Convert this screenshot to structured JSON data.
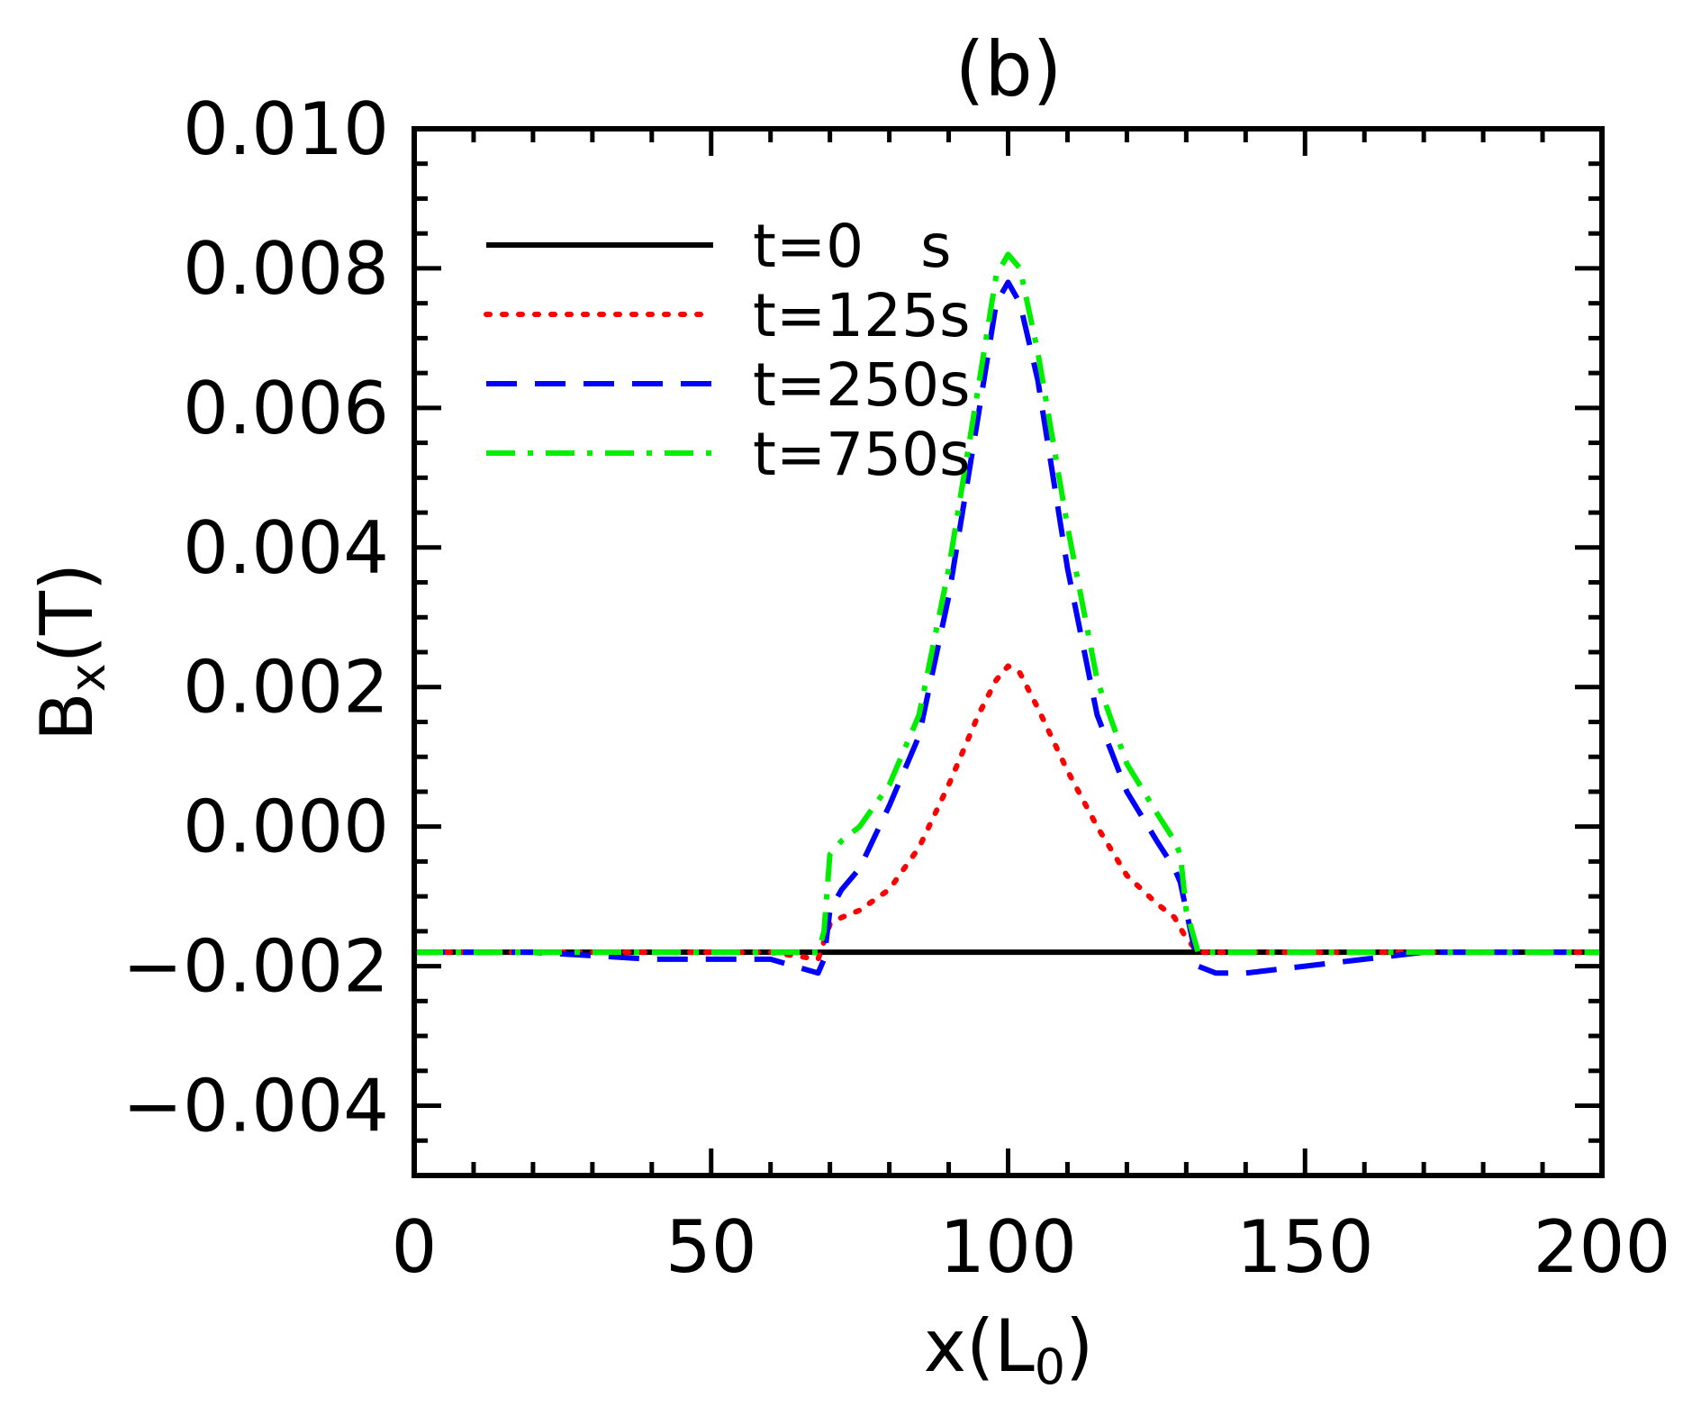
{
  "chart_data": {
    "type": "line",
    "title": "(b)",
    "xlabel": {
      "main": "x(L",
      "sub": "0",
      "end": ")"
    },
    "ylabel": {
      "main": "B",
      "sub": "x",
      "end": "(T)"
    },
    "xlim": [
      0,
      200
    ],
    "ylim": [
      -0.005,
      0.01
    ],
    "xticks": [
      0,
      50,
      100,
      150,
      200
    ],
    "xtick_labels": [
      "0",
      "50",
      "100",
      "150",
      "200"
    ],
    "yticks": [
      -0.004,
      -0.002,
      0.0,
      0.002,
      0.004,
      0.006,
      0.008,
      0.01
    ],
    "ytick_labels": [
      "−0.004",
      "−0.002",
      "0.000",
      "0.002",
      "0.004",
      "0.006",
      "0.008",
      "0.010"
    ],
    "grid": false,
    "legend_position": "top-left",
    "series": [
      {
        "name": "t=0   s",
        "color": "#000000",
        "style": "solid",
        "x": [
          0,
          200
        ],
        "y": [
          -0.0018,
          -0.0018
        ]
      },
      {
        "name": "t=125s",
        "color": "#ff0000",
        "style": "dotted",
        "x": [
          0,
          20,
          40,
          60,
          68,
          70,
          72,
          75,
          80,
          85,
          90,
          95,
          98,
          100,
          102,
          105,
          110,
          115,
          120,
          125,
          128,
          130,
          132,
          140,
          160,
          180,
          200
        ],
        "y": [
          -0.0018,
          -0.0018,
          -0.0018,
          -0.0018,
          -0.0019,
          -0.0014,
          -0.0013,
          -0.0012,
          -0.0009,
          -0.0003,
          0.0006,
          0.0016,
          0.0021,
          0.0023,
          0.0022,
          0.0017,
          0.0008,
          0.0,
          -0.0007,
          -0.0011,
          -0.0013,
          -0.0016,
          -0.0018,
          -0.0018,
          -0.0018,
          -0.0018,
          -0.0018
        ]
      },
      {
        "name": "t=250s",
        "color": "#0000ff",
        "style": "dashed",
        "x": [
          0,
          20,
          40,
          60,
          68,
          69,
          70,
          72,
          75,
          80,
          85,
          90,
          95,
          98,
          100,
          102,
          105,
          110,
          115,
          120,
          125,
          128,
          129,
          130,
          132,
          135,
          140,
          150,
          160,
          170,
          180,
          200
        ],
        "y": [
          -0.0018,
          -0.0018,
          -0.0019,
          -0.0019,
          -0.0021,
          -0.0019,
          -0.0012,
          -0.0009,
          -0.0006,
          0.0003,
          0.0013,
          0.0033,
          0.0059,
          0.0075,
          0.0078,
          0.0075,
          0.0064,
          0.0037,
          0.0016,
          0.0005,
          -0.0002,
          -0.0006,
          -0.0008,
          -0.0012,
          -0.002,
          -0.0021,
          -0.0021,
          -0.002,
          -0.0019,
          -0.0018,
          -0.0018,
          -0.0018
        ]
      },
      {
        "name": "t=750s",
        "color": "#00ee00",
        "style": "dashdot",
        "x": [
          0,
          20,
          40,
          60,
          68,
          69,
          70,
          72,
          75,
          80,
          85,
          90,
          95,
          98,
          100,
          102,
          105,
          110,
          115,
          120,
          125,
          128,
          129,
          130,
          132,
          140,
          160,
          170,
          180,
          200
        ],
        "y": [
          -0.0018,
          -0.0018,
          -0.0018,
          -0.0018,
          -0.0018,
          -0.0015,
          -0.0004,
          -0.0002,
          0.0,
          0.0006,
          0.0016,
          0.0037,
          0.0063,
          0.0079,
          0.0082,
          0.008,
          0.0068,
          0.0043,
          0.0021,
          0.0009,
          0.0002,
          -0.0002,
          -0.0004,
          -0.0012,
          -0.0018,
          -0.0018,
          -0.0018,
          -0.0018,
          -0.0018,
          -0.0018
        ]
      }
    ]
  }
}
